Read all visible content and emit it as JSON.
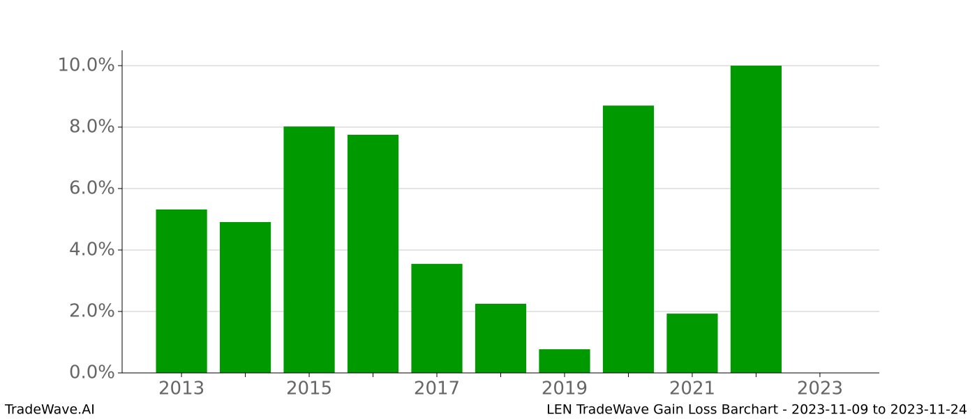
{
  "chart_data": {
    "type": "bar",
    "title": "LEN TradeWave Gain Loss Barchart - 2023-11-09 to 2023-11-24",
    "watermark": "TradeWave.AI",
    "x": [
      2013,
      2014,
      2015,
      2016,
      2017,
      2018,
      2019,
      2020,
      2021,
      2022
    ],
    "values": [
      5.32,
      4.91,
      8.02,
      7.75,
      3.55,
      2.25,
      0.77,
      8.7,
      1.93,
      10.0
    ],
    "color": "#009900",
    "xlim": [
      2012.07,
      2023.93
    ],
    "xticks": [
      2013,
      2015,
      2017,
      2019,
      2021,
      2023
    ],
    "xminorticks": [
      2014,
      2016,
      2018,
      2020,
      2022
    ],
    "ylim": [
      0,
      10.5
    ],
    "yticks": [
      {
        "value": 0,
        "label": "0.0%"
      },
      {
        "value": 2,
        "label": "2.0%"
      },
      {
        "value": 4,
        "label": "4.0%"
      },
      {
        "value": 6,
        "label": "6.0%"
      },
      {
        "value": 8,
        "label": "8.0%"
      },
      {
        "value": 10,
        "label": "10.0%"
      }
    ],
    "grid": true
  }
}
